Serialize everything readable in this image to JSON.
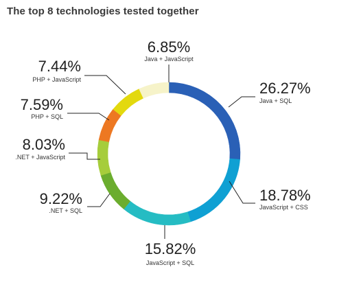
{
  "title": "The top 8 technologies tested together",
  "chart_data": {
    "type": "pie",
    "variant": "donut",
    "title": "The top 8 technologies tested together",
    "legend": "none",
    "slices": [
      {
        "label": "Java + SQL",
        "value": 26.27,
        "display": "26.27%",
        "color": "#2a60b6"
      },
      {
        "label": "JavaScript + CSS",
        "value": 18.78,
        "display": "18.78%",
        "color": "#0fa0d3"
      },
      {
        "label": "JavaScript + SQL",
        "value": 15.82,
        "display": "15.82%",
        "color": "#25bcc3"
      },
      {
        "label": ".NET + SQL",
        "value": 9.22,
        "display": "9.22%",
        "color": "#6bad2e"
      },
      {
        "label": ".NET + JavaScript",
        "value": 8.03,
        "display": "8.03%",
        "color": "#a6cd3b"
      },
      {
        "label": "PHP + SQL",
        "value": 7.59,
        "display": "7.59%",
        "color": "#ed7822"
      },
      {
        "label": "PHP + JavaScript",
        "value": 7.44,
        "display": "7.44%",
        "color": "#e3d90e"
      },
      {
        "label": "Java + JavaScript",
        "value": 6.85,
        "display": "6.85%",
        "color": "#f6f3c9"
      }
    ]
  }
}
